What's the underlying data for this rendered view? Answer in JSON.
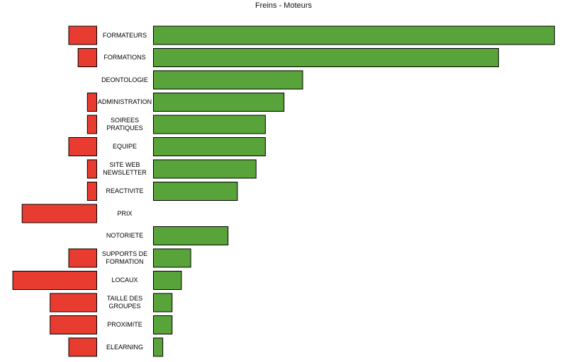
{
  "chart_data": {
    "type": "diverging-bar",
    "title": "Freins - Moteurs",
    "categories": [
      "FORMATEURS",
      "FORMATIONS",
      "DEONTOLOGIE",
      "ADMINISTRATION",
      "SOIREES PRATIQUES",
      "EQUIPE",
      "SITE WEB NEWSLETTER",
      "REACTIVITE",
      "PRIX",
      "NOTORIETE",
      "SUPPORTS DE FORMATION",
      "LOCAUX",
      "TAILLE DES GROUPES",
      "PROXIMITE",
      "ELEARNING"
    ],
    "series": [
      {
        "color": "#e83c30",
        "values": [
          3,
          2,
          0,
          1,
          1,
          3,
          1,
          1,
          8,
          0,
          3,
          9,
          5,
          5,
          3
        ]
      },
      {
        "color": "#58a33a",
        "values": [
          43,
          37,
          16,
          14,
          12,
          12,
          11,
          9,
          0,
          8,
          4,
          3,
          2,
          2,
          1
        ]
      }
    ]
  }
}
